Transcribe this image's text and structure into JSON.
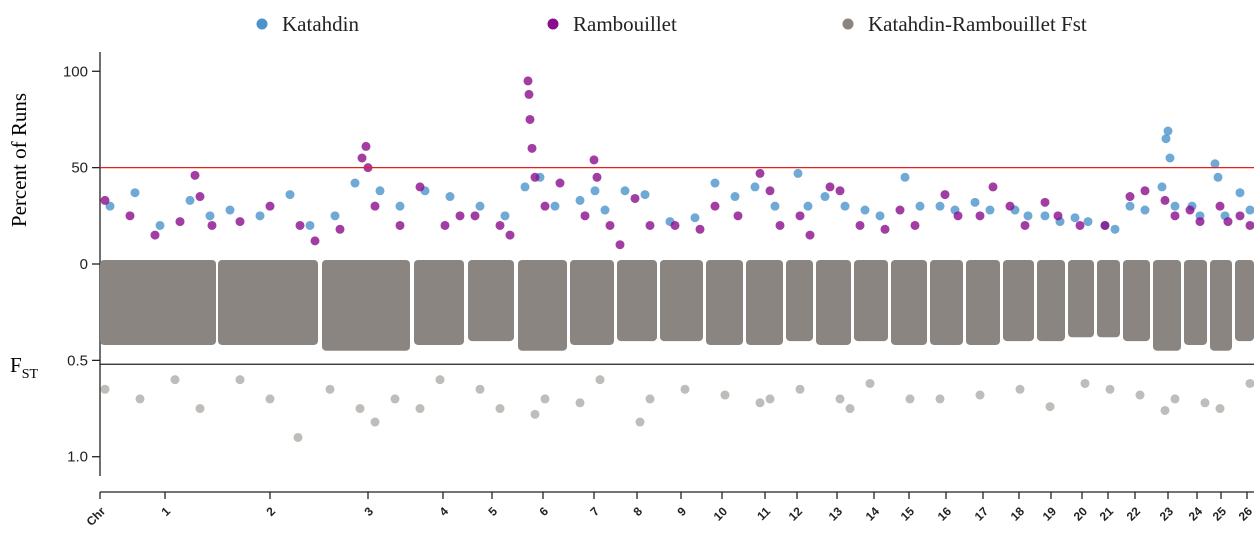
{
  "chart_data": {
    "type": "manhattan",
    "ylabel": "Percent of Runs",
    "y2label": {
      "main": "F",
      "sub": "ST"
    },
    "xlim": [
      0,
      1154
    ],
    "ylim": [
      0,
      110
    ],
    "yticks": [
      0,
      50,
      100
    ],
    "y2lim": [
      0,
      1.1
    ],
    "y2ticks": [
      0.5,
      {
        "value": 1,
        "label": "1.0"
      }
    ],
    "xticks": [
      {
        "value": 0,
        "label": "Chr"
      },
      {
        "value": 65,
        "label": "1"
      },
      {
        "value": 170,
        "label": "2"
      },
      {
        "value": 268,
        "label": "3"
      },
      {
        "value": 343,
        "label": "4"
      },
      {
        "value": 392,
        "label": "5"
      },
      {
        "value": 443,
        "label": "6"
      },
      {
        "value": 494,
        "label": "7"
      },
      {
        "value": 537,
        "label": "8"
      },
      {
        "value": 581,
        "label": "9"
      },
      {
        "value": 622,
        "label": "10"
      },
      {
        "value": 665,
        "label": "11"
      },
      {
        "value": 697,
        "label": "12"
      },
      {
        "value": 737,
        "label": "13"
      },
      {
        "value": 774,
        "label": "14"
      },
      {
        "value": 809,
        "label": "15"
      },
      {
        "value": 846,
        "label": "16"
      },
      {
        "value": 883,
        "label": "17"
      },
      {
        "value": 919,
        "label": "18"
      },
      {
        "value": 951,
        "label": "19"
      },
      {
        "value": 982,
        "label": "20"
      },
      {
        "value": 1008,
        "label": "21"
      },
      {
        "value": 1035,
        "label": "22"
      },
      {
        "value": 1068,
        "label": "23"
      },
      {
        "value": 1097,
        "label": "24"
      },
      {
        "value": 1121,
        "label": "25"
      },
      {
        "value": 1147,
        "label": "26"
      }
    ],
    "threshold": {
      "value": 50,
      "color": "#e8201a"
    },
    "y2threshold": {
      "value": 0.52,
      "color": "#222222"
    },
    "chromosome_bounds": [
      [
        0,
        116
      ],
      [
        118,
        218
      ],
      [
        222,
        310
      ],
      [
        314,
        364
      ],
      [
        368,
        414
      ],
      [
        418,
        467
      ],
      [
        470,
        514
      ],
      [
        517,
        557
      ],
      [
        560,
        603
      ],
      [
        606,
        643
      ],
      [
        646,
        683
      ],
      [
        686,
        713
      ],
      [
        716,
        751
      ],
      [
        754,
        788
      ],
      [
        791,
        827
      ],
      [
        830,
        863
      ],
      [
        866,
        900
      ],
      [
        903,
        934
      ],
      [
        937,
        965
      ],
      [
        968,
        994
      ],
      [
        997,
        1020
      ],
      [
        1023,
        1050
      ],
      [
        1053,
        1081
      ],
      [
        1084,
        1107
      ],
      [
        1110,
        1132
      ],
      [
        1135,
        1154
      ]
    ],
    "fst_cloud_top": [
      0.42,
      0.42,
      0.45,
      0.42,
      0.4,
      0.45,
      0.42,
      0.4,
      0.4,
      0.42,
      0.42,
      0.4,
      0.42,
      0.4,
      0.42,
      0.42,
      0.42,
      0.4,
      0.4,
      0.38,
      0.38,
      0.4,
      0.45,
      0.42,
      0.45,
      0.4
    ],
    "series": [
      {
        "name": "Katahdin",
        "color": "#4b93cc",
        "x": [
          10,
          35,
          60,
          90,
          110,
          130,
          160,
          190,
          210,
          235,
          255,
          280,
          300,
          325,
          350,
          380,
          405,
          425,
          440,
          455,
          480,
          495,
          505,
          525,
          545,
          570,
          595,
          615,
          635,
          655,
          675,
          698,
          708,
          725,
          745,
          765,
          780,
          805,
          820,
          840,
          855,
          875,
          890,
          915,
          928,
          945,
          960,
          975,
          988,
          1005,
          1015,
          1030,
          1045,
          1062,
          1066,
          1068,
          1070,
          1075,
          1092,
          1100,
          1115,
          1118,
          1125,
          1140,
          1150
        ],
        "values": [
          30,
          37,
          20,
          33,
          25,
          28,
          25,
          36,
          20,
          25,
          42,
          38,
          30,
          38,
          35,
          30,
          25,
          40,
          45,
          30,
          33,
          38,
          28,
          38,
          36,
          22,
          24,
          42,
          35,
          40,
          30,
          47,
          30,
          35,
          30,
          28,
          25,
          45,
          30,
          30,
          28,
          32,
          28,
          28,
          25,
          25,
          22,
          24,
          22,
          20,
          18,
          30,
          28,
          40,
          65,
          69,
          55,
          30,
          30,
          25,
          52,
          45,
          25,
          37,
          28
        ]
      },
      {
        "name": "Rambouillet",
        "color": "#8a0d8c",
        "x": [
          5,
          30,
          55,
          80,
          95,
          100,
          112,
          140,
          170,
          200,
          215,
          240,
          262,
          266,
          268,
          275,
          300,
          320,
          345,
          360,
          375,
          400,
          410,
          428,
          429,
          430,
          432,
          435,
          445,
          460,
          485,
          494,
          497,
          510,
          520,
          535,
          550,
          575,
          600,
          615,
          638,
          660,
          670,
          680,
          700,
          710,
          730,
          740,
          760,
          785,
          800,
          815,
          845,
          858,
          880,
          893,
          910,
          925,
          945,
          958,
          980,
          1005,
          1030,
          1045,
          1065,
          1075,
          1090,
          1100,
          1120,
          1128,
          1140,
          1150
        ],
        "values": [
          33,
          25,
          15,
          22,
          46,
          35,
          20,
          22,
          30,
          20,
          12,
          18,
          55,
          61,
          50,
          30,
          20,
          40,
          20,
          25,
          25,
          20,
          15,
          95,
          88,
          75,
          60,
          45,
          30,
          42,
          25,
          54,
          45,
          20,
          10,
          34,
          20,
          20,
          18,
          30,
          25,
          47,
          38,
          20,
          25,
          15,
          40,
          38,
          20,
          18,
          28,
          20,
          36,
          25,
          25,
          40,
          30,
          20,
          32,
          25,
          20,
          20,
          35,
          38,
          33,
          25,
          28,
          22,
          30,
          22,
          25,
          20
        ]
      },
      {
        "name": "Katahdin-Rambouillet Fst",
        "color": "#8a8580",
        "axis": "y2",
        "x": [
          5,
          40,
          75,
          100,
          140,
          170,
          198,
          230,
          260,
          275,
          295,
          320,
          340,
          380,
          400,
          435,
          445,
          480,
          500,
          540,
          550,
          585,
          625,
          660,
          670,
          700,
          740,
          750,
          770,
          810,
          840,
          880,
          920,
          950,
          985,
          1010,
          1040,
          1065,
          1075,
          1105,
          1120,
          1150
        ],
        "values": [
          0.65,
          0.7,
          0.6,
          0.75,
          0.6,
          0.7,
          0.9,
          0.65,
          0.75,
          0.82,
          0.7,
          0.75,
          0.6,
          0.65,
          0.75,
          0.78,
          0.7,
          0.72,
          0.6,
          0.82,
          0.7,
          0.65,
          0.68,
          0.72,
          0.7,
          0.65,
          0.7,
          0.75,
          0.62,
          0.7,
          0.7,
          0.68,
          0.65,
          0.74,
          0.62,
          0.65,
          0.68,
          0.76,
          0.7,
          0.72,
          0.75,
          0.62
        ]
      }
    ]
  }
}
